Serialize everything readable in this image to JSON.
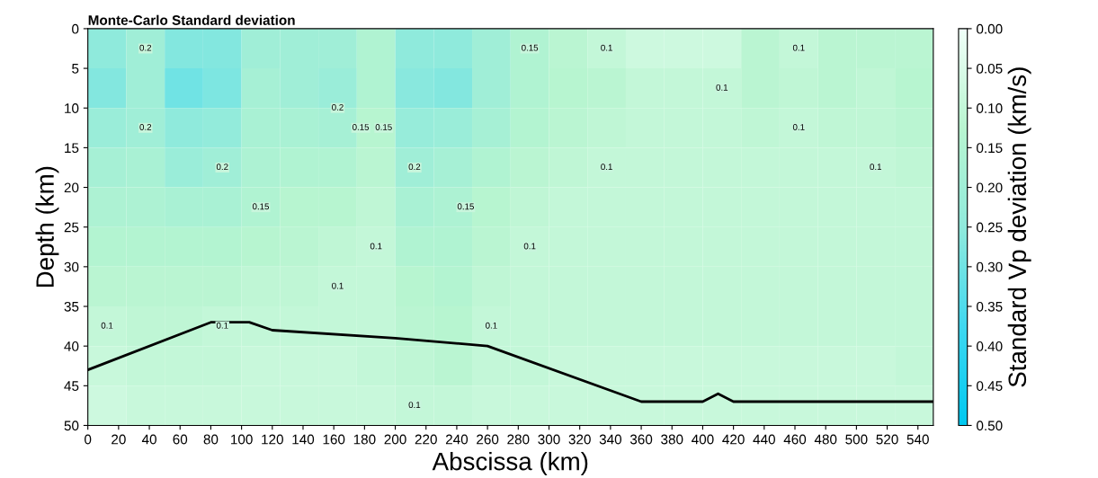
{
  "chart_data": {
    "type": "heatmap",
    "title": "Monte-Carlo Standard deviation",
    "xlabel": "Abscissa (km)",
    "ylabel": "Depth (km)",
    "clabel": "Standard Vp deviation (km/s)",
    "x": [
      12.5,
      37.5,
      62.5,
      87.5,
      112.5,
      137.5,
      162.5,
      187.5,
      212.5,
      237.5,
      262.5,
      287.5,
      312.5,
      337.5,
      362.5,
      387.5,
      412.5,
      437.5,
      462.5,
      487.5,
      512.5,
      537.5
    ],
    "y": [
      2.5,
      7.5,
      12.5,
      17.5,
      22.5,
      27.5,
      32.5,
      37.5,
      42.5,
      47.5
    ],
    "xlim": [
      0,
      550
    ],
    "xticks": [
      0,
      20,
      40,
      60,
      80,
      100,
      120,
      140,
      160,
      180,
      200,
      220,
      240,
      260,
      280,
      300,
      320,
      340,
      360,
      380,
      400,
      420,
      440,
      460,
      480,
      500,
      520,
      540
    ],
    "ylim": [
      50,
      0
    ],
    "yticks": [
      0,
      5,
      10,
      15,
      20,
      25,
      30,
      35,
      40,
      45,
      50
    ],
    "clim": [
      0,
      0.5
    ],
    "cticks": [
      {
        "value": 0,
        "label": "0.00"
      },
      {
        "value": 0.05,
        "label": "0.05"
      },
      {
        "value": 0.1,
        "label": "0.10"
      },
      {
        "value": 0.15,
        "label": "0.15"
      },
      {
        "value": 0.2,
        "label": "0.20"
      },
      {
        "value": 0.25,
        "label": "0.25"
      },
      {
        "value": 0.3,
        "label": "0.30"
      },
      {
        "value": 0.35,
        "label": "0.35"
      },
      {
        "value": 0.4,
        "label": "0.40"
      },
      {
        "value": 0.45,
        "label": "0.45"
      },
      {
        "value": 0.5,
        "label": "0.50"
      }
    ],
    "cells": [
      [
        0.25,
        0.2,
        0.27,
        0.27,
        0.2,
        0.2,
        0.2,
        0.15,
        0.25,
        0.25,
        0.2,
        0.15,
        0.12,
        0.1,
        0.08,
        0.08,
        0.08,
        0.12,
        0.1,
        0.12,
        0.12,
        0.12
      ],
      [
        0.27,
        0.2,
        0.3,
        0.28,
        0.18,
        0.2,
        0.22,
        0.15,
        0.26,
        0.27,
        0.2,
        0.15,
        0.13,
        0.12,
        0.1,
        0.1,
        0.1,
        0.12,
        0.11,
        0.12,
        0.11,
        0.13
      ],
      [
        0.22,
        0.2,
        0.25,
        0.24,
        0.17,
        0.17,
        0.18,
        0.13,
        0.23,
        0.22,
        0.18,
        0.14,
        0.12,
        0.11,
        0.1,
        0.1,
        0.1,
        0.11,
        0.1,
        0.11,
        0.11,
        0.12
      ],
      [
        0.18,
        0.17,
        0.22,
        0.2,
        0.16,
        0.15,
        0.15,
        0.12,
        0.2,
        0.18,
        0.15,
        0.12,
        0.11,
        0.1,
        0.1,
        0.1,
        0.1,
        0.1,
        0.1,
        0.1,
        0.1,
        0.11
      ],
      [
        0.16,
        0.16,
        0.17,
        0.17,
        0.15,
        0.13,
        0.13,
        0.11,
        0.17,
        0.16,
        0.13,
        0.11,
        0.1,
        0.1,
        0.1,
        0.1,
        0.1,
        0.1,
        0.1,
        0.1,
        0.1,
        0.1
      ],
      [
        0.14,
        0.14,
        0.14,
        0.14,
        0.13,
        0.12,
        0.11,
        0.1,
        0.15,
        0.15,
        0.12,
        0.1,
        0.1,
        0.1,
        0.1,
        0.1,
        0.1,
        0.1,
        0.1,
        0.1,
        0.1,
        0.1
      ],
      [
        0.12,
        0.12,
        0.12,
        0.12,
        0.11,
        0.11,
        0.1,
        0.1,
        0.13,
        0.14,
        0.11,
        0.1,
        0.1,
        0.1,
        0.1,
        0.1,
        0.1,
        0.1,
        0.1,
        0.1,
        0.1,
        0.1
      ],
      [
        0.1,
        0.11,
        0.11,
        0.1,
        0.1,
        0.1,
        0.1,
        0.1,
        0.12,
        0.13,
        0.1,
        0.1,
        0.1,
        0.1,
        0.1,
        0.1,
        0.1,
        0.1,
        0.1,
        0.1,
        0.1,
        0.1
      ],
      [
        0.09,
        0.1,
        0.1,
        0.1,
        0.09,
        0.09,
        0.09,
        0.1,
        0.11,
        0.12,
        0.1,
        0.1,
        0.09,
        0.09,
        0.09,
        0.09,
        0.09,
        0.09,
        0.09,
        0.09,
        0.09,
        0.1
      ],
      [
        0.08,
        0.09,
        0.09,
        0.09,
        0.09,
        0.09,
        0.09,
        0.09,
        0.1,
        0.1,
        0.09,
        0.09,
        0.09,
        0.09,
        0.09,
        0.09,
        0.09,
        0.09,
        0.09,
        0.09,
        0.09,
        0.09
      ]
    ],
    "series": [
      {
        "type": "line",
        "color": "#000000",
        "x": [
          0,
          80,
          105,
          120,
          200,
          260,
          360,
          400,
          410,
          420,
          450,
          550
        ],
        "values": [
          43,
          37,
          37,
          38,
          39,
          40,
          47,
          47,
          46,
          47,
          47,
          47
        ]
      }
    ],
    "annotations": [
      "0.2",
      "0.15",
      "0.2",
      "0.2",
      "0.15",
      "0.1",
      "0.1",
      "0.2",
      "0.2",
      "0.15",
      "0.1",
      "0.1",
      "0.1",
      "0.1",
      "0.15",
      "0.1",
      "0.1",
      "0.1",
      "0.1",
      "0.15",
      "0.1",
      "0.1",
      "0.1"
    ]
  }
}
